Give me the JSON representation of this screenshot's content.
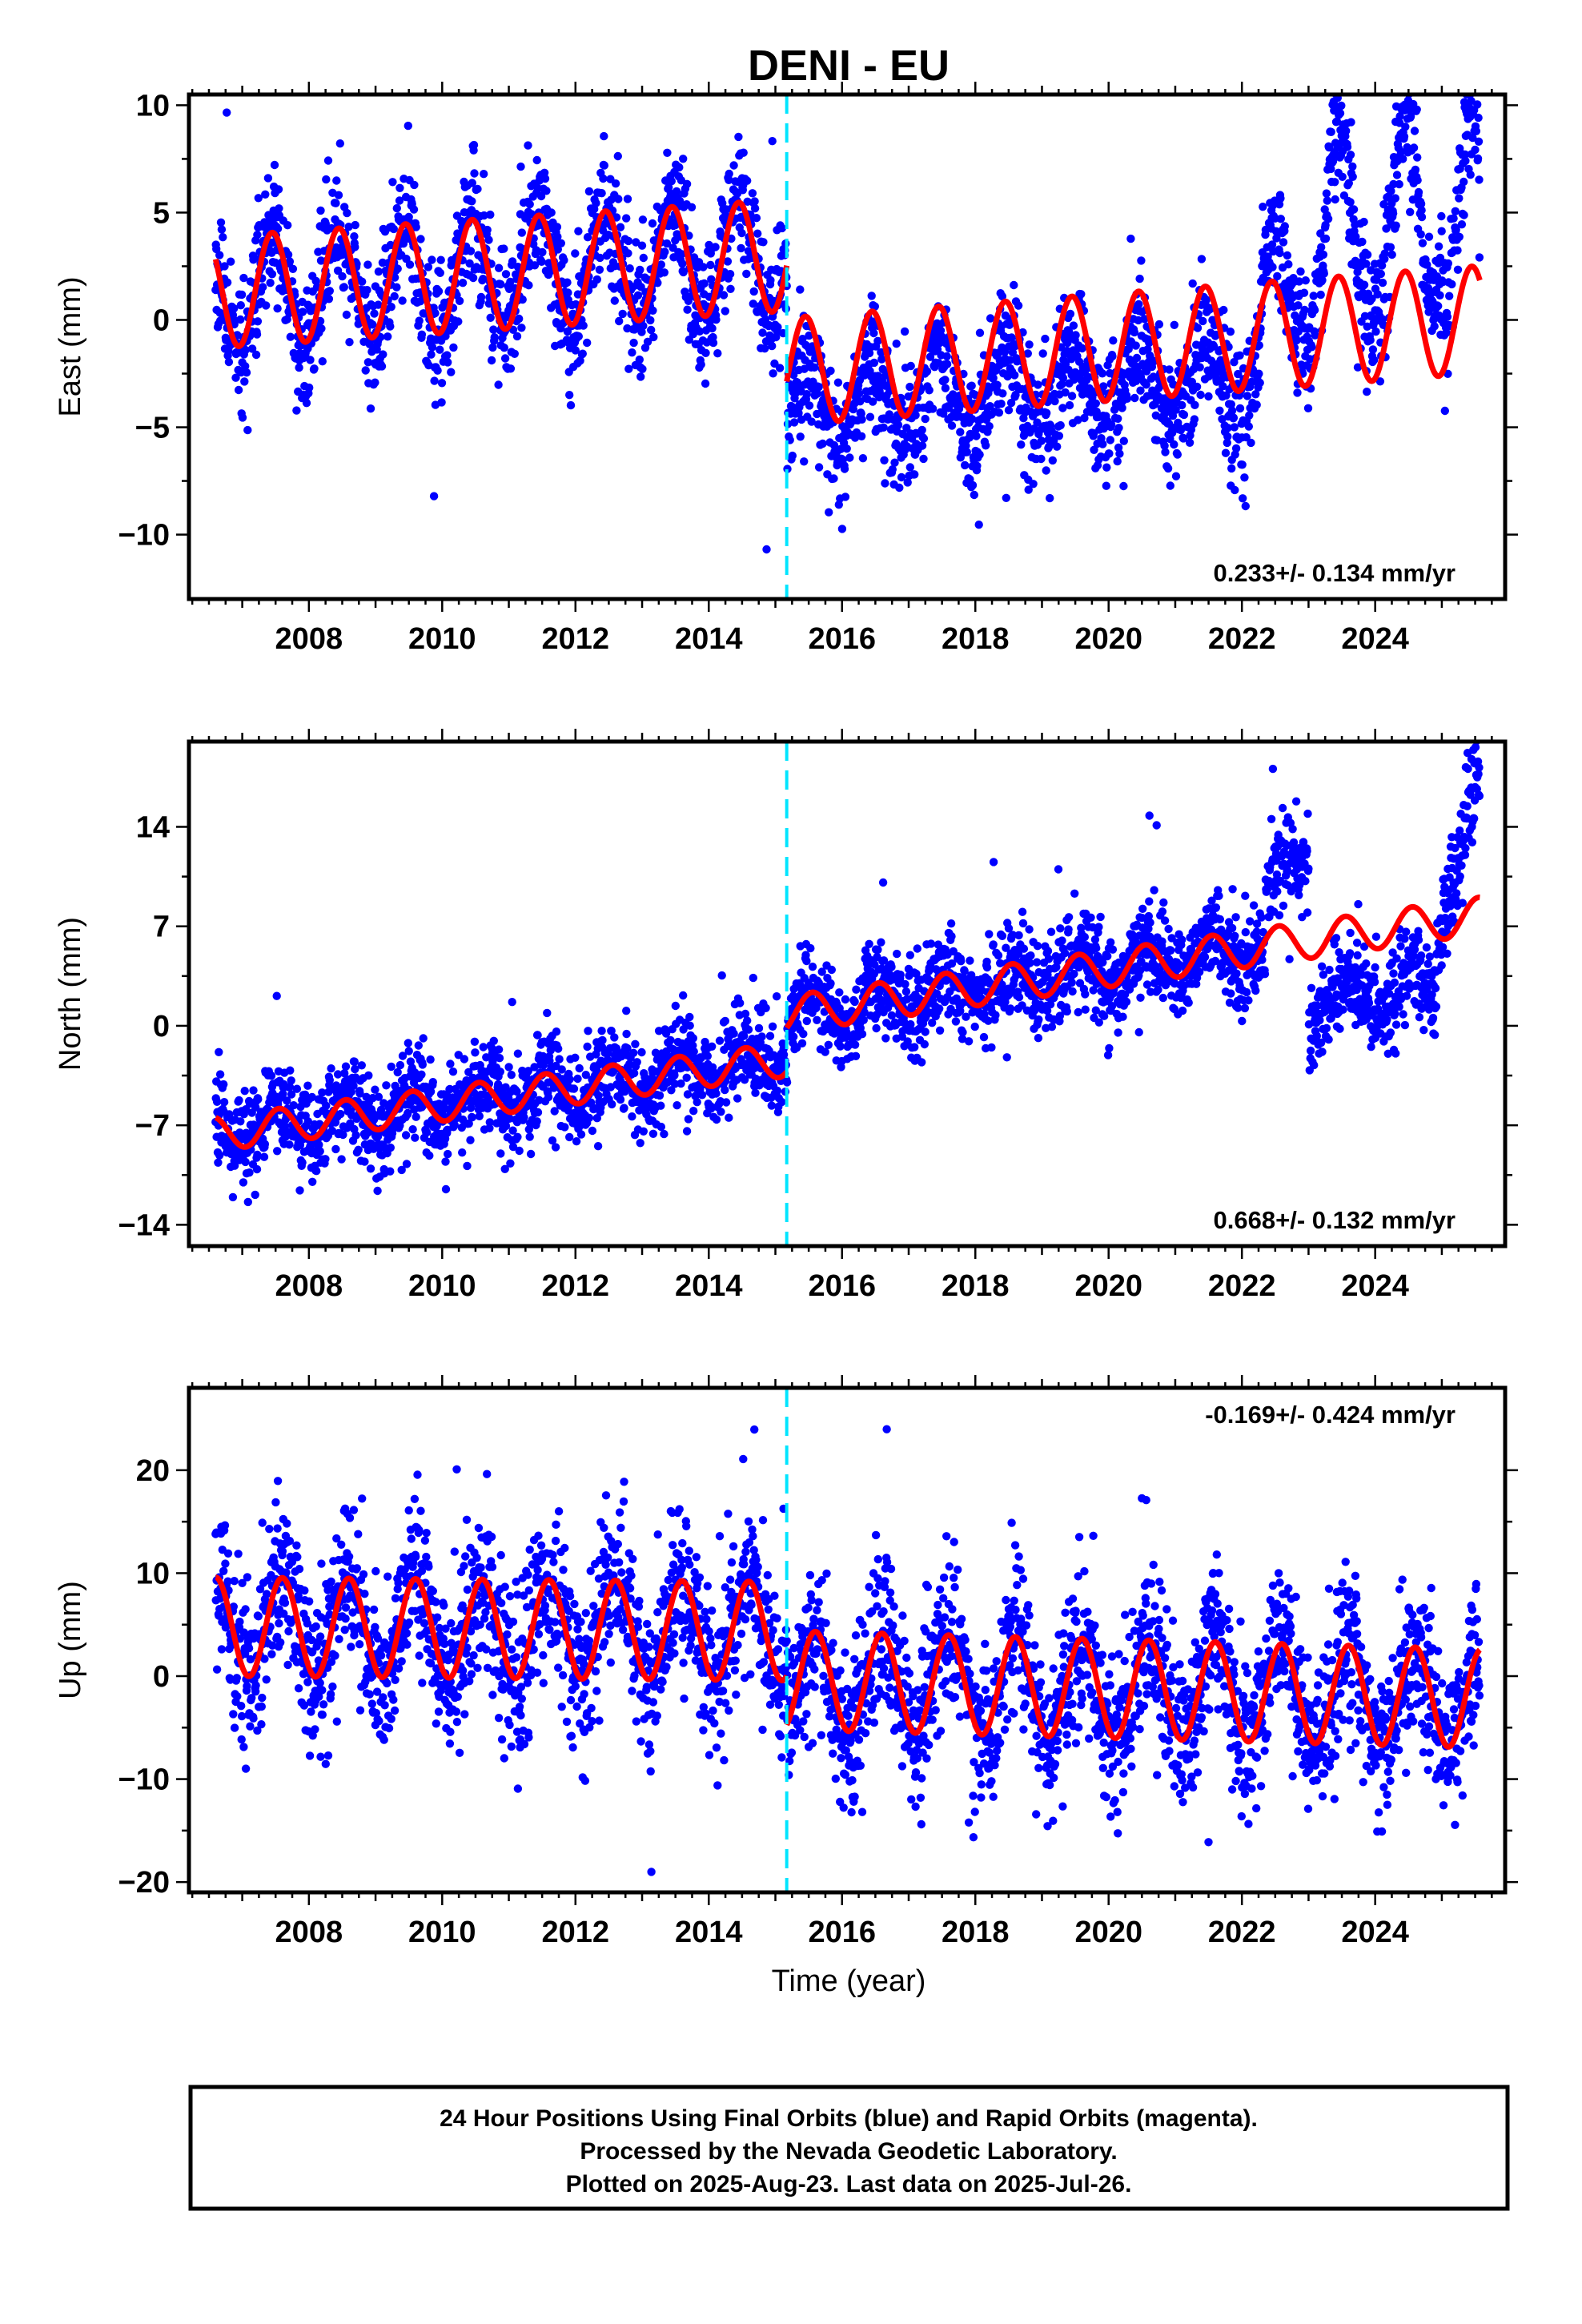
{
  "title": "DENI - EU",
  "xlabel": "Time (year)",
  "footer": [
    "24 Hour Positions Using Final Orbits (blue) and Rapid Orbits (magenta).",
    "Processed by the Nevada Geodetic Laboratory.",
    "Plotted on 2025-Aug-23. Last data on 2025-Jul-26."
  ],
  "colors": {
    "data": "#0000ff",
    "model": "#ff0000",
    "break": "#00e5ff",
    "frame": "#000000"
  },
  "chart_data": [
    {
      "type": "scatter",
      "component": "east",
      "ylabel": "East (mm)",
      "rate_text": "0.233+/- 0.134 mm/yr",
      "xlim": [
        2006.2,
        2025.95
      ],
      "ylim": [
        -13,
        10.5
      ],
      "yticks": [
        10,
        5,
        0,
        -5,
        -10
      ],
      "ytick_labels": [
        "10",
        "5",
        "0",
        "−5",
        "−10"
      ],
      "xticks": [
        2008,
        2010,
        2012,
        2014,
        2016,
        2018,
        2020,
        2022,
        2024
      ],
      "break_epoch": 2015.17,
      "x_range": [
        2006.6,
        2025.57
      ],
      "series": [
        {
          "name": "Final Orbits",
          "values_summary": "daily positions, seasonal cycle ~±4 mm, offset of about -6 mm at 2015.17, jump of ~+5 mm after 2022.3"
        },
        {
          "name": "Model",
          "model_segments": [
            {
              "t0": 2006.6,
              "t1": 2015.17,
              "y0": 1.3,
              "rate": 0.2,
              "amp": 2.6,
              "peak_phase": 0.45
            },
            {
              "t0": 2015.17,
              "t1": 2025.57,
              "y0": -2.4,
              "rate": 0.233,
              "amp": 2.5,
              "peak_phase": 0.45
            }
          ]
        }
      ]
    },
    {
      "type": "scatter",
      "component": "north",
      "ylabel": "North (mm)",
      "rate_text": "0.668+/- 0.132 mm/yr",
      "xlim": [
        2006.2,
        2025.95
      ],
      "ylim": [
        -15.5,
        20
      ],
      "yticks": [
        14,
        7,
        0,
        -7,
        -14
      ],
      "ytick_labels": [
        "14",
        "7",
        "0",
        "−7",
        "−14"
      ],
      "xticks": [
        2008,
        2010,
        2012,
        2014,
        2016,
        2018,
        2020,
        2022,
        2024
      ],
      "break_epoch": 2015.17,
      "x_range": [
        2006.6,
        2025.57
      ],
      "series": [
        {
          "name": "Final Orbits",
          "values_summary": "linear trend ~0.67 mm/yr, offset of about +3 mm at 2015.17, drop to ~+1 mm during 2023-2024.9, rise to ~16 mm in 2025"
        },
        {
          "name": "Model",
          "model_segments": [
            {
              "t0": 2006.6,
              "t1": 2015.17,
              "y0": -7.6,
              "rate": 0.61,
              "amp": 1.2,
              "peak_phase": 0.55
            },
            {
              "t0": 2015.17,
              "t1": 2025.57,
              "y0": 0.8,
              "rate": 0.668,
              "amp": 1.3,
              "peak_phase": 0.55
            }
          ]
        }
      ]
    },
    {
      "type": "scatter",
      "component": "up",
      "ylabel": "Up (mm)",
      "rate_text": "-0.169+/- 0.424 mm/yr",
      "xlim": [
        2006.2,
        2025.95
      ],
      "ylim": [
        -21,
        28
      ],
      "yticks": [
        20,
        10,
        0,
        -10,
        -20
      ],
      "ytick_labels": [
        "20",
        "10",
        "0",
        "−10",
        "−20"
      ],
      "xticks": [
        2008,
        2010,
        2012,
        2014,
        2016,
        2018,
        2020,
        2022,
        2024
      ],
      "break_epoch": 2015.17,
      "x_range": [
        2006.6,
        2025.57
      ],
      "series": [
        {
          "name": "Final Orbits",
          "values_summary": "seasonal cycle ~±5 mm with noise ~±5 mm, offset of about -5 mm at 2015.17"
        },
        {
          "name": "Model",
          "model_segments": [
            {
              "t0": 2006.6,
              "t1": 2015.17,
              "y0": 4.8,
              "rate": -0.05,
              "amp": 4.8,
              "peak_phase": 0.6
            },
            {
              "t0": 2015.17,
              "t1": 2025.57,
              "y0": -0.4,
              "rate": -0.169,
              "amp": 4.8,
              "peak_phase": 0.6
            }
          ]
        }
      ]
    }
  ]
}
